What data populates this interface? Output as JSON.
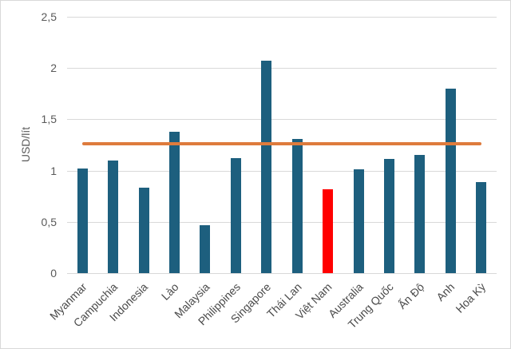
{
  "chart_data": {
    "type": "bar",
    "title": "",
    "ylabel": "USD/lít",
    "xlabel": "",
    "ylim": [
      0,
      2.5
    ],
    "grid": true,
    "legend": "none",
    "decimal_separator": ",",
    "categories": [
      "Myanmar",
      "Campuchia",
      "Indonesia",
      "Lào",
      "Malaysia",
      "Philippines",
      "Singapore",
      "Thái Lan",
      "Việt Nam",
      "Australia",
      "Trung Quốc",
      "Ấn Độ",
      "Anh",
      "Hoa Kỳ"
    ],
    "values": [
      1.02,
      1.1,
      0.83,
      1.38,
      0.47,
      1.12,
      2.07,
      1.31,
      0.82,
      1.01,
      1.11,
      1.15,
      1.8,
      0.89
    ],
    "highlight_category": "Việt Nam",
    "yticks": [
      {
        "value": 0,
        "label": "0"
      },
      {
        "value": 0.5,
        "label": "0,5"
      },
      {
        "value": 1,
        "label": "1"
      },
      {
        "value": 1.5,
        "label": "1,5"
      },
      {
        "value": 2,
        "label": "2"
      },
      {
        "value": 2.5,
        "label": "2,5"
      }
    ],
    "reference_line": {
      "value": 1.26,
      "color": "#de7b3d"
    },
    "colors": {
      "bar": "#1d5f7e",
      "highlight": "#ff0000",
      "gridline": "#d9d9d9",
      "tick_text": "#595959",
      "category_text": "#4a4a4a"
    }
  }
}
